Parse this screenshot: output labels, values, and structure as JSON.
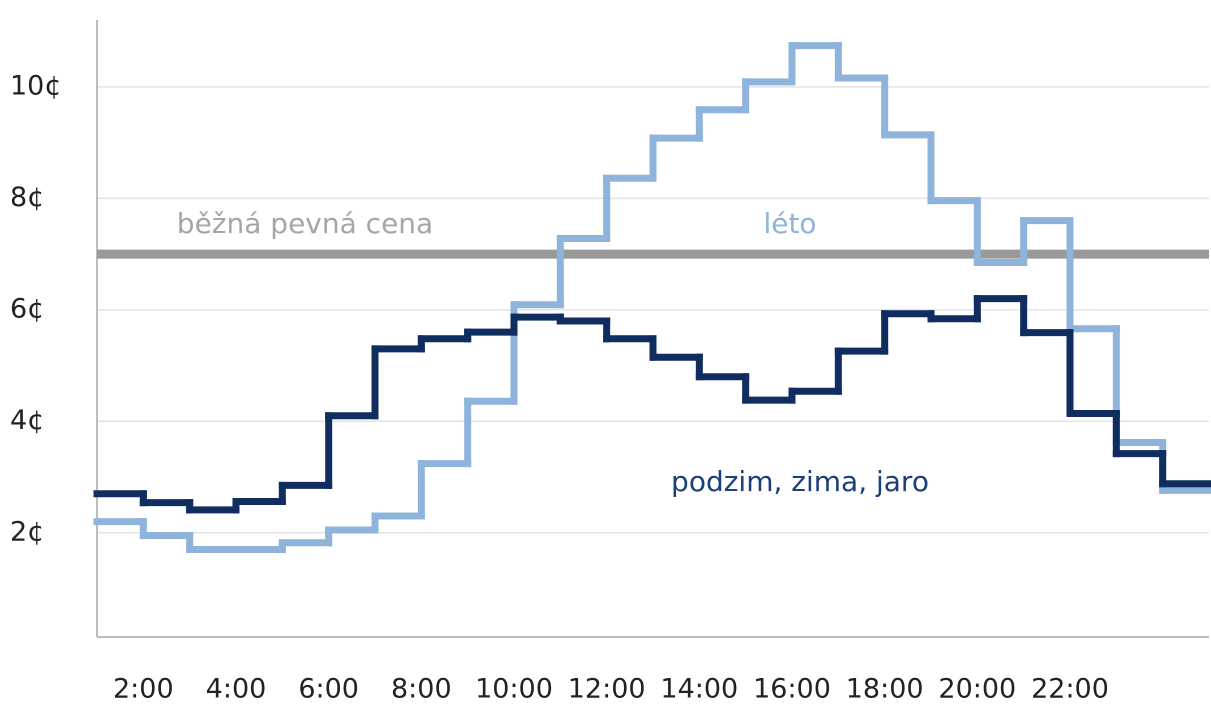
{
  "chart_data": {
    "type": "step",
    "x": [
      1,
      2,
      3,
      4,
      5,
      6,
      7,
      8,
      9,
      10,
      11,
      12,
      13,
      14,
      15,
      16,
      17,
      18,
      19,
      20,
      21,
      22,
      23,
      24
    ],
    "series": [
      {
        "name": "léto",
        "color": "#8fb4dc",
        "values": [
          2.2,
          1.95,
          1.7,
          1.7,
          1.82,
          2.05,
          2.3,
          3.24,
          4.36,
          6.09,
          7.28,
          8.36,
          9.08,
          9.59,
          10.09,
          10.74,
          10.16,
          9.14,
          7.96,
          6.85,
          7.6,
          5.66,
          3.62,
          2.76
        ]
      },
      {
        "name": "podzim, zima, jaro",
        "color": "#0f2d5f",
        "values": [
          2.7,
          2.54,
          2.41,
          2.56,
          2.85,
          4.1,
          5.3,
          5.48,
          5.6,
          5.87,
          5.8,
          5.48,
          5.15,
          4.8,
          4.38,
          4.54,
          5.26,
          5.93,
          5.84,
          6.2,
          5.59,
          4.14,
          3.42,
          2.88
        ]
      }
    ],
    "reference_line": {
      "label": "běžná pevná cena",
      "value": 7,
      "color": "#999999"
    },
    "xlim": [
      1,
      25
    ],
    "xticks": [
      {
        "value": 2,
        "label": "2:00"
      },
      {
        "value": 4,
        "label": "4:00"
      },
      {
        "value": 6,
        "label": "6:00"
      },
      {
        "value": 8,
        "label": "8:00"
      },
      {
        "value": 10,
        "label": "10:00"
      },
      {
        "value": 12,
        "label": "12:00"
      },
      {
        "value": 14,
        "label": "14:00"
      },
      {
        "value": 16,
        "label": "16:00"
      },
      {
        "value": 18,
        "label": "18:00"
      },
      {
        "value": 20,
        "label": "20:00"
      },
      {
        "value": 22,
        "label": "22:00"
      }
    ],
    "ylim": [
      0.13,
      11.2
    ],
    "yticks": [
      {
        "value": 2,
        "label": "2¢"
      },
      {
        "value": 4,
        "label": "4¢"
      },
      {
        "value": 6,
        "label": "6¢"
      },
      {
        "value": 8,
        "label": "8¢"
      },
      {
        "value": 10,
        "label": "10¢"
      }
    ],
    "grid": true
  }
}
